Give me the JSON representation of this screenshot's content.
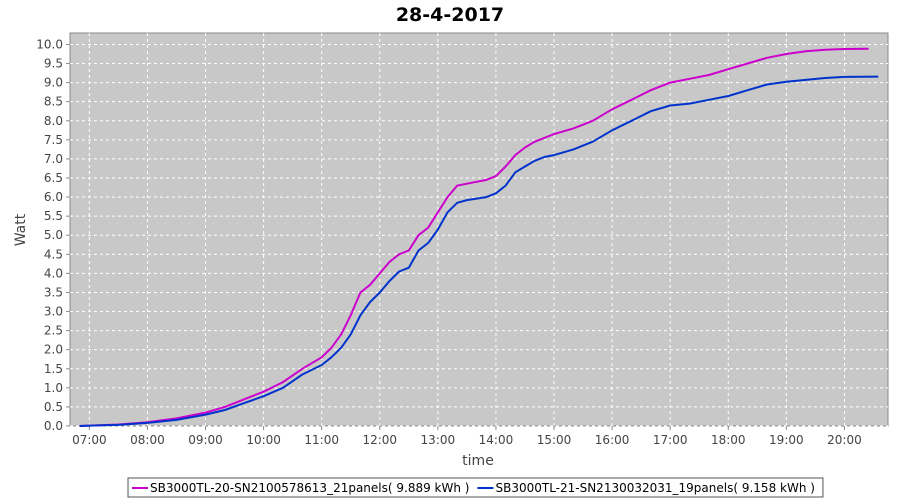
{
  "chart_data": {
    "type": "line",
    "title": "28-4-2017",
    "xlabel": "time",
    "ylabel": "Watt",
    "xlim": [
      "06:40",
      "20:45"
    ],
    "ylim": [
      0,
      10.3
    ],
    "x_ticks": [
      "07:00",
      "08:00",
      "09:00",
      "10:00",
      "11:00",
      "12:00",
      "13:00",
      "14:00",
      "15:00",
      "16:00",
      "17:00",
      "18:00",
      "19:00",
      "20:00"
    ],
    "y_ticks": [
      "0.0",
      "0.5",
      "1.0",
      "1.5",
      "2.0",
      "2.5",
      "3.0",
      "3.5",
      "4.0",
      "4.5",
      "5.0",
      "5.5",
      "6.0",
      "6.5",
      "7.0",
      "7.5",
      "8.0",
      "8.5",
      "9.0",
      "9.5",
      "10.0"
    ],
    "grid": true,
    "legend_position": "bottom",
    "background_color": "#c8c8c8",
    "series": [
      {
        "name": "SB3000TL-20-SN2100578613_21panels( 9.889 kWh )",
        "color": "#cc00cc",
        "x": [
          "06:50",
          "07:00",
          "07:30",
          "08:00",
          "08:30",
          "09:00",
          "09:20",
          "09:40",
          "10:00",
          "10:20",
          "10:40",
          "11:00",
          "11:10",
          "11:20",
          "11:30",
          "11:40",
          "11:50",
          "12:00",
          "12:10",
          "12:20",
          "12:30",
          "12:40",
          "12:50",
          "13:00",
          "13:10",
          "13:20",
          "13:30",
          "13:40",
          "13:50",
          "14:00",
          "14:10",
          "14:20",
          "14:30",
          "14:40",
          "14:50",
          "15:00",
          "15:20",
          "15:40",
          "16:00",
          "16:20",
          "16:40",
          "17:00",
          "17:20",
          "17:40",
          "18:00",
          "18:20",
          "18:40",
          "19:00",
          "19:20",
          "19:40",
          "20:00",
          "20:25"
        ],
        "y": [
          0.0,
          0.01,
          0.04,
          0.1,
          0.2,
          0.35,
          0.5,
          0.7,
          0.9,
          1.15,
          1.5,
          1.8,
          2.05,
          2.4,
          2.9,
          3.5,
          3.7,
          4.0,
          4.3,
          4.5,
          4.6,
          5.0,
          5.2,
          5.6,
          6.0,
          6.3,
          6.35,
          6.4,
          6.45,
          6.55,
          6.8,
          7.1,
          7.3,
          7.45,
          7.55,
          7.65,
          7.8,
          8.0,
          8.3,
          8.55,
          8.8,
          9.0,
          9.1,
          9.2,
          9.35,
          9.5,
          9.65,
          9.75,
          9.82,
          9.86,
          9.88,
          9.889
        ]
      },
      {
        "name": "SB3000TL-21-SN2130032031_19panels( 9.158 kWh )",
        "color": "#0033cc",
        "x": [
          "06:50",
          "07:00",
          "07:30",
          "08:00",
          "08:30",
          "09:00",
          "09:20",
          "09:40",
          "10:00",
          "10:20",
          "10:40",
          "11:00",
          "11:10",
          "11:20",
          "11:30",
          "11:40",
          "11:50",
          "12:00",
          "12:10",
          "12:20",
          "12:30",
          "12:40",
          "12:50",
          "13:00",
          "13:10",
          "13:20",
          "13:30",
          "13:40",
          "13:50",
          "14:00",
          "14:10",
          "14:20",
          "14:30",
          "14:40",
          "14:50",
          "15:00",
          "15:20",
          "15:40",
          "16:00",
          "16:20",
          "16:40",
          "17:00",
          "17:20",
          "17:40",
          "18:00",
          "18:20",
          "18:40",
          "19:00",
          "19:20",
          "19:40",
          "20:00",
          "20:35"
        ],
        "y": [
          0.0,
          0.01,
          0.03,
          0.08,
          0.16,
          0.3,
          0.42,
          0.6,
          0.78,
          1.0,
          1.35,
          1.6,
          1.8,
          2.05,
          2.4,
          2.9,
          3.25,
          3.5,
          3.8,
          4.05,
          4.15,
          4.6,
          4.8,
          5.15,
          5.6,
          5.85,
          5.92,
          5.96,
          6.0,
          6.1,
          6.3,
          6.65,
          6.8,
          6.95,
          7.05,
          7.1,
          7.25,
          7.45,
          7.75,
          8.0,
          8.25,
          8.4,
          8.45,
          8.55,
          8.65,
          8.8,
          8.95,
          9.02,
          9.07,
          9.12,
          9.15,
          9.158
        ]
      }
    ]
  }
}
